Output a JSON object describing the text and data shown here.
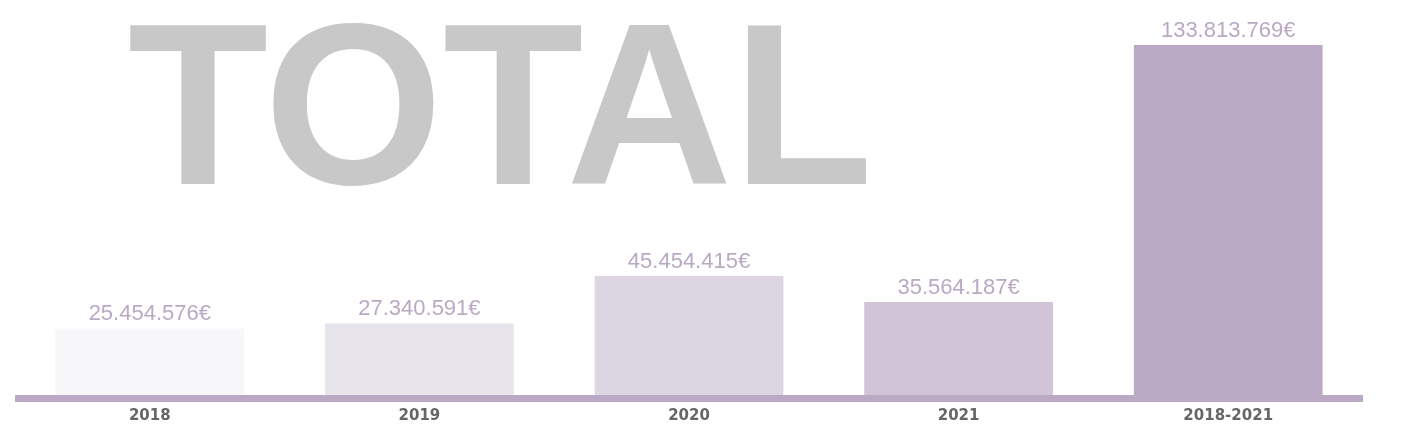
{
  "chart_data": {
    "type": "bar",
    "categories": [
      "2018",
      "2019",
      "2020",
      "2021",
      "2018-2021"
    ],
    "values": [
      25454576,
      27340591,
      45454415,
      35564187,
      133813769
    ],
    "value_labels": [
      "25.454.576€",
      "27.340.591€",
      "45.454.415€",
      "35.564.187€",
      "133.813.769€"
    ],
    "colors": [
      "#f7f6f9",
      "#e8e4ec",
      "#dcd5e2",
      "#d1c4d7",
      "#b9a9c4"
    ],
    "annotations": [
      "TOTAL"
    ],
    "legend": false
  }
}
